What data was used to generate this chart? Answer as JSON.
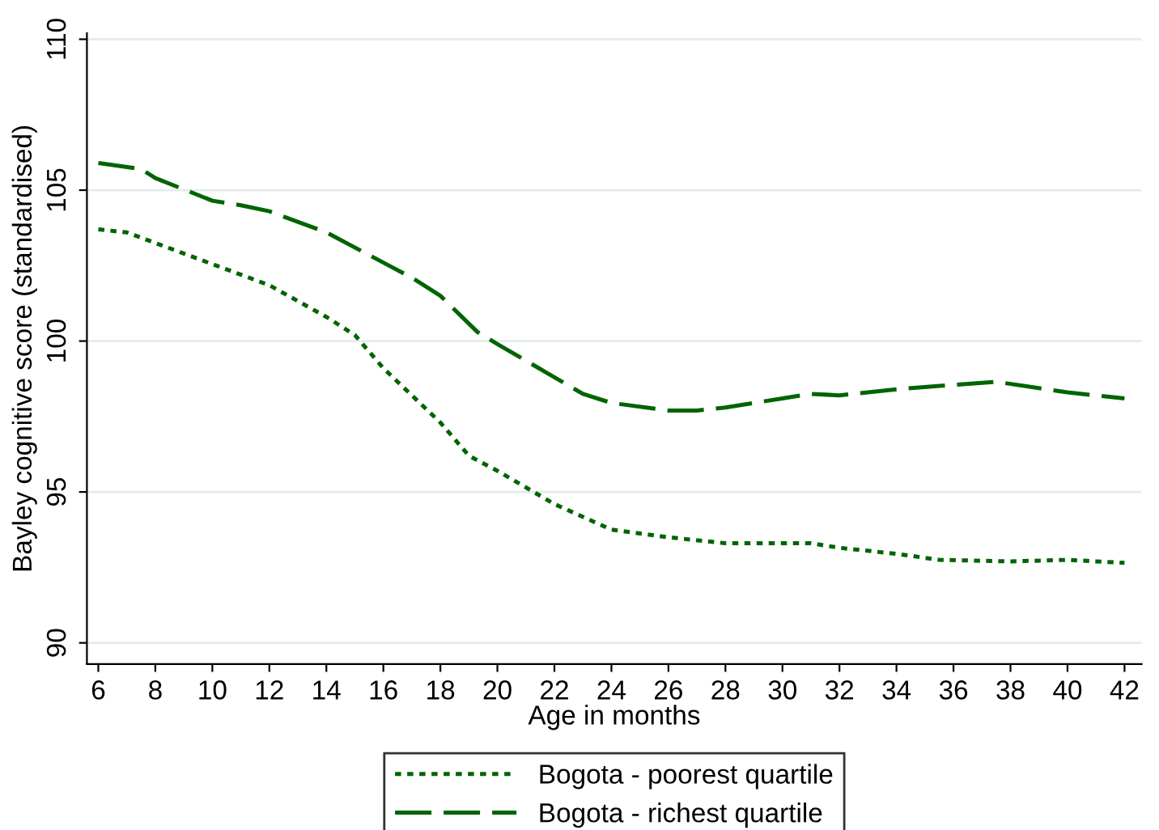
{
  "chart_data": {
    "type": "line",
    "xlabel": "Age in months",
    "ylabel": "Bayley cognitive score (standardised)",
    "xlim": [
      5.6,
      42.6
    ],
    "xticks": [
      6,
      8,
      10,
      12,
      14,
      16,
      18,
      20,
      22,
      24,
      26,
      28,
      30,
      32,
      34,
      36,
      38,
      40,
      42
    ],
    "ylim": [
      89.3,
      110.2
    ],
    "yticks": [
      90,
      95,
      100,
      105,
      110
    ],
    "grid": "y",
    "legend": "bottom",
    "series": [
      {
        "name": "Bogota - poorest quartile",
        "color": "#006400",
        "line_style": "dotted",
        "x": [
          6,
          7,
          8,
          10,
          12,
          14,
          15,
          16,
          18,
          19,
          20,
          22,
          24,
          26,
          28,
          30,
          31,
          32,
          34,
          35.5,
          38,
          40,
          42
        ],
        "values": [
          103.7,
          103.6,
          103.25,
          102.55,
          101.85,
          100.8,
          100.2,
          99.1,
          97.3,
          96.2,
          95.7,
          94.6,
          93.75,
          93.5,
          93.3,
          93.3,
          93.3,
          93.15,
          92.95,
          92.75,
          92.7,
          92.75,
          92.65
        ]
      },
      {
        "name": "Bogota - richest quartile",
        "color": "#006400",
        "line_style": "dashed",
        "x": [
          6,
          7.5,
          8,
          10,
          11,
          12,
          14,
          16,
          17,
          18,
          19.3,
          20,
          22,
          23,
          24,
          26,
          27,
          28,
          30,
          31,
          32,
          34,
          36,
          37.5,
          40,
          41,
          42
        ],
        "values": [
          105.9,
          105.7,
          105.4,
          104.65,
          104.5,
          104.3,
          103.6,
          102.6,
          102.1,
          101.5,
          100.3,
          99.9,
          98.8,
          98.25,
          97.95,
          97.7,
          97.7,
          97.8,
          98.1,
          98.25,
          98.2,
          98.4,
          98.55,
          98.65,
          98.3,
          98.2,
          98.1
        ]
      }
    ]
  }
}
